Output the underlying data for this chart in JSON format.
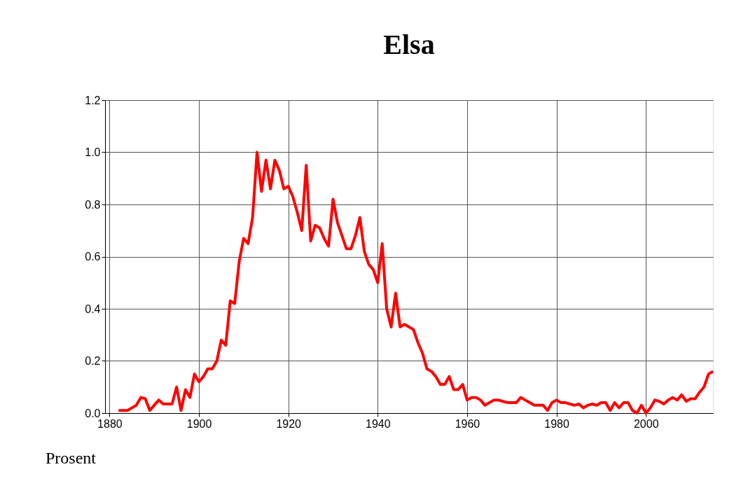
{
  "chart_data": {
    "type": "line",
    "title": "Elsa",
    "annotations": [
      "Prosent"
    ],
    "x": [
      1882,
      1883,
      1884,
      1885,
      1886,
      1887,
      1888,
      1889,
      1890,
      1891,
      1892,
      1893,
      1894,
      1895,
      1896,
      1897,
      1898,
      1899,
      1900,
      1901,
      1902,
      1903,
      1904,
      1905,
      1906,
      1907,
      1908,
      1909,
      1910,
      1911,
      1912,
      1913,
      1914,
      1915,
      1916,
      1917,
      1918,
      1919,
      1920,
      1921,
      1922,
      1923,
      1924,
      1925,
      1926,
      1927,
      1928,
      1929,
      1930,
      1931,
      1932,
      1933,
      1934,
      1935,
      1936,
      1937,
      1938,
      1939,
      1940,
      1941,
      1942,
      1943,
      1944,
      1945,
      1946,
      1947,
      1948,
      1949,
      1950,
      1951,
      1952,
      1953,
      1954,
      1955,
      1956,
      1957,
      1958,
      1959,
      1960,
      1961,
      1962,
      1963,
      1964,
      1965,
      1966,
      1967,
      1968,
      1969,
      1970,
      1971,
      1972,
      1973,
      1974,
      1975,
      1976,
      1977,
      1978,
      1979,
      1980,
      1981,
      1982,
      1983,
      1984,
      1985,
      1986,
      1987,
      1988,
      1989,
      1990,
      1991,
      1992,
      1993,
      1994,
      1995,
      1996,
      1997,
      1998,
      1999,
      2000,
      2001,
      2002,
      2003,
      2004,
      2005,
      2006,
      2007,
      2008,
      2009,
      2010,
      2011,
      2012,
      2013,
      2014,
      2015
    ],
    "series": [
      {
        "color": "#ff0000",
        "values": [
          0.01,
          0.01,
          0.01,
          0.02,
          0.03,
          0.06,
          0.055,
          0.01,
          0.03,
          0.05,
          0.035,
          0.035,
          0.035,
          0.1,
          0.01,
          0.09,
          0.06,
          0.15,
          0.12,
          0.14,
          0.17,
          0.17,
          0.2,
          0.28,
          0.26,
          0.43,
          0.42,
          0.58,
          0.67,
          0.65,
          0.75,
          1.0,
          0.85,
          0.97,
          0.86,
          0.97,
          0.93,
          0.86,
          0.87,
          0.83,
          0.77,
          0.7,
          0.95,
          0.66,
          0.72,
          0.71,
          0.67,
          0.64,
          0.82,
          0.73,
          0.68,
          0.63,
          0.63,
          0.68,
          0.75,
          0.62,
          0.57,
          0.55,
          0.5,
          0.65,
          0.4,
          0.33,
          0.46,
          0.33,
          0.34,
          0.33,
          0.32,
          0.27,
          0.23,
          0.17,
          0.16,
          0.14,
          0.11,
          0.11,
          0.14,
          0.09,
          0.09,
          0.11,
          0.05,
          0.06,
          0.06,
          0.05,
          0.03,
          0.04,
          0.05,
          0.05,
          0.045,
          0.04,
          0.04,
          0.04,
          0.06,
          0.05,
          0.04,
          0.03,
          0.03,
          0.03,
          0.01,
          0.04,
          0.05,
          0.04,
          0.04,
          0.035,
          0.03,
          0.035,
          0.02,
          0.03,
          0.035,
          0.03,
          0.04,
          0.04,
          0.01,
          0.04,
          0.02,
          0.04,
          0.04,
          0.01,
          0.0,
          0.03,
          0.0,
          0.02,
          0.05,
          0.045,
          0.035,
          0.05,
          0.06,
          0.05,
          0.07,
          0.045,
          0.055,
          0.055,
          0.08,
          0.1,
          0.15,
          0.16
        ]
      }
    ],
    "xlim": [
      1879,
      2015
    ],
    "xticks": [
      1880,
      1900,
      1920,
      1940,
      1960,
      1980,
      2000
    ],
    "ylim": [
      0,
      1.2
    ],
    "yticks": [
      {
        "value": 0,
        "label": "0.0"
      },
      {
        "value": 0.2,
        "label": "0.2"
      },
      {
        "value": 0.4,
        "label": "0.4"
      },
      {
        "value": 0.6,
        "label": "0.6"
      },
      {
        "value": 0.8,
        "label": "0.8"
      },
      {
        "value": 1.0,
        "label": "1.0"
      },
      {
        "value": 1.2,
        "label": "1.2"
      }
    ],
    "grid": true,
    "marker": "none",
    "line_style": "solid"
  }
}
